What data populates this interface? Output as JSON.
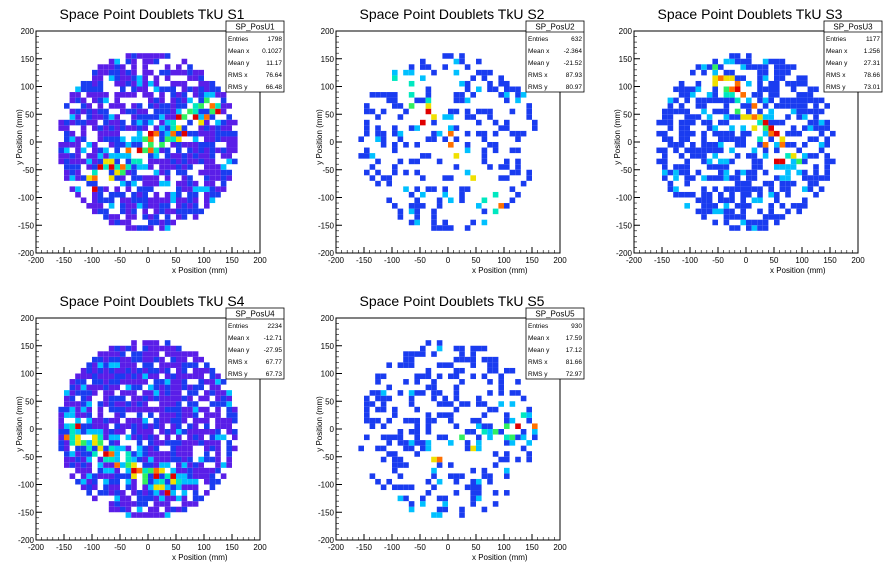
{
  "chart_data": [
    {
      "type": "heatmap",
      "title": "Space Point Doublets TkU S1",
      "xlabel": "x Position (mm)",
      "ylabel": "y Position (mm)",
      "xlim": [
        -200,
        200
      ],
      "ylim": [
        -200,
        200
      ],
      "xticks": [
        "-200",
        "-150",
        "-100",
        "-50",
        "0",
        "50",
        "100",
        "150",
        "200"
      ],
      "yticks": [
        "-200",
        "-150",
        "-100",
        "-50",
        "0",
        "50",
        "100",
        "150",
        "200"
      ],
      "bin_width": 10,
      "occupied_radius": 160,
      "band": {
        "x0": -100,
        "y0": -70,
        "x1": 110,
        "y1": 60
      },
      "sparsity": 0.25,
      "base_color": "#5a1ee8",
      "stats": {
        "name": "SP_PosU1",
        "rows": [
          {
            "label": "Entries",
            "value": "1798"
          },
          {
            "label": "Mean x",
            "value": "0.1027"
          },
          {
            "label": "Mean y",
            "value": "11.17"
          },
          {
            "label": "RMS x",
            "value": "76.64"
          },
          {
            "label": "RMS y",
            "value": "66.48"
          }
        ]
      }
    },
    {
      "type": "heatmap",
      "title": "Space Point Doublets TkU S2",
      "xlabel": "x Position (mm)",
      "ylabel": "y Position (mm)",
      "xlim": [
        -200,
        200
      ],
      "ylim": [
        -200,
        200
      ],
      "xticks": [
        "-200",
        "-150",
        "-100",
        "-50",
        "0",
        "50",
        "100",
        "150",
        "200"
      ],
      "yticks": [
        "-200",
        "-150",
        "-100",
        "-50",
        "0",
        "50",
        "100",
        "150",
        "200"
      ],
      "bin_width": 10,
      "occupied_radius": 160,
      "band": {
        "x0": -80,
        "y0": 110,
        "x1": 100,
        "y1": -140
      },
      "sparsity": 0.72,
      "base_color": "#1a3cf0",
      "stats": {
        "name": "SP_PosU2",
        "rows": [
          {
            "label": "Entries",
            "value": "632"
          },
          {
            "label": "Mean x",
            "value": "-2.364"
          },
          {
            "label": "Mean y",
            "value": "-21.52"
          },
          {
            "label": "RMS x",
            "value": "87.93"
          },
          {
            "label": "RMS y",
            "value": "80.97"
          }
        ]
      }
    },
    {
      "type": "heatmap",
      "title": "Space Point Doublets TkU S3",
      "xlabel": "x Position (mm)",
      "ylabel": "y Position (mm)",
      "xlim": [
        -200,
        200
      ],
      "ylim": [
        -200,
        200
      ],
      "xticks": [
        "-200",
        "-150",
        "-100",
        "-50",
        "0",
        "50",
        "100",
        "150",
        "200"
      ],
      "yticks": [
        "-200",
        "-150",
        "-100",
        "-50",
        "0",
        "50",
        "100",
        "150",
        "200"
      ],
      "bin_width": 10,
      "occupied_radius": 160,
      "band": {
        "x0": -50,
        "y0": 120,
        "x1": 80,
        "y1": -40
      },
      "sparsity": 0.45,
      "base_color": "#1a3cf0",
      "stats": {
        "name": "SP_PosU3",
        "rows": [
          {
            "label": "Entries",
            "value": "1177"
          },
          {
            "label": "Mean x",
            "value": "1.256"
          },
          {
            "label": "Mean y",
            "value": "27.31"
          },
          {
            "label": "RMS x",
            "value": "78.66"
          },
          {
            "label": "RMS y",
            "value": "73.01"
          }
        ]
      }
    },
    {
      "type": "heatmap",
      "title": "Space Point Doublets TkU S4",
      "xlabel": "x Position (mm)",
      "ylabel": "y Position (mm)",
      "xlim": [
        -200,
        200
      ],
      "ylim": [
        -200,
        200
      ],
      "xticks": [
        "-200",
        "-150",
        "-100",
        "-50",
        "0",
        "50",
        "100",
        "150",
        "200"
      ],
      "yticks": [
        "-200",
        "-150",
        "-100",
        "-50",
        "0",
        "50",
        "100",
        "150",
        "200"
      ],
      "bin_width": 10,
      "occupied_radius": 160,
      "band": {
        "x0": -130,
        "y0": -10,
        "x1": 40,
        "y1": -100
      },
      "sparsity": 0.18,
      "base_color": "#5a1ee8",
      "stats": {
        "name": "SP_PosU4",
        "rows": [
          {
            "label": "Entries",
            "value": "2234"
          },
          {
            "label": "Mean x",
            "value": "-12.71"
          },
          {
            "label": "Mean y",
            "value": "-27.95"
          },
          {
            "label": "RMS x",
            "value": "67.77"
          },
          {
            "label": "RMS y",
            "value": "67.73"
          }
        ]
      }
    },
    {
      "type": "heatmap",
      "title": "Space Point Doublets TkU S5",
      "xlabel": "x Position (mm)",
      "ylabel": "y Position (mm)",
      "xlim": [
        -200,
        200
      ],
      "ylim": [
        -200,
        200
      ],
      "xticks": [
        "-200",
        "-150",
        "-100",
        "-50",
        "0",
        "50",
        "100",
        "150",
        "200"
      ],
      "yticks": [
        "-200",
        "-150",
        "-100",
        "-50",
        "0",
        "50",
        "100",
        "150",
        "200"
      ],
      "bin_width": 10,
      "occupied_radius": 160,
      "band": {
        "x0": -20,
        "y0": -50,
        "x1": 140,
        "y1": 10
      },
      "sparsity": 0.65,
      "base_color": "#1a3cf0",
      "stats": {
        "name": "SP_PosU5",
        "rows": [
          {
            "label": "Entries",
            "value": "930"
          },
          {
            "label": "Mean x",
            "value": "17.59"
          },
          {
            "label": "Mean y",
            "value": "17.12"
          },
          {
            "label": "RMS x",
            "value": "81.66"
          },
          {
            "label": "RMS y",
            "value": "72.97"
          }
        ]
      }
    }
  ]
}
